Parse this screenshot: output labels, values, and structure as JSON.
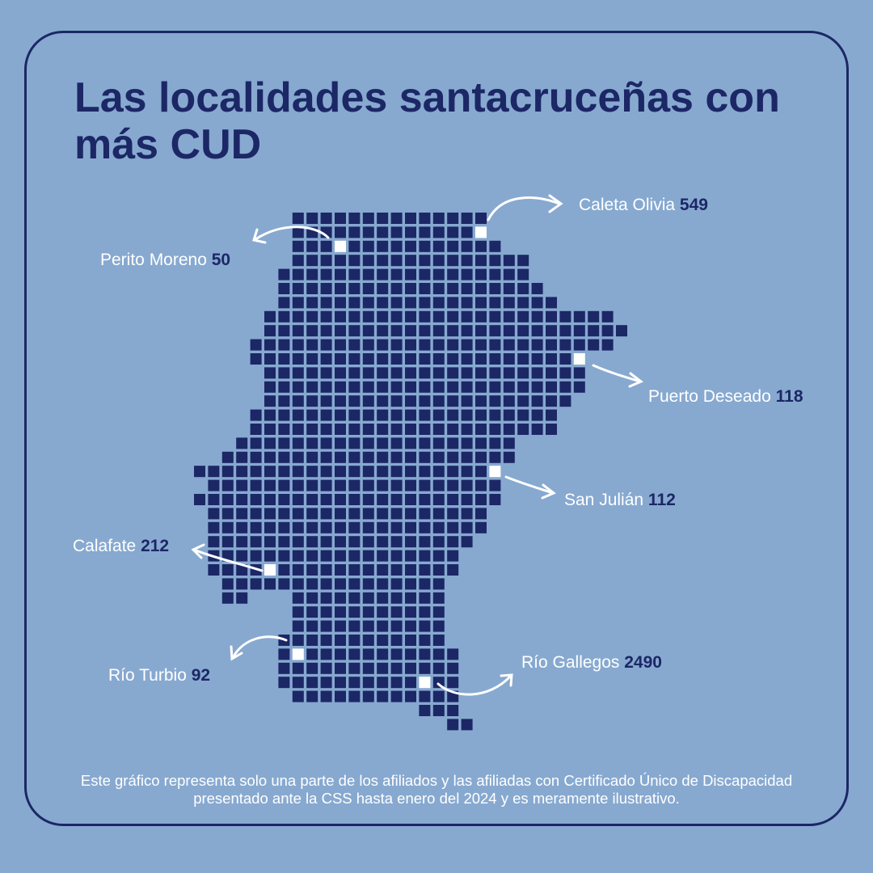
{
  "title": "Las localidades santacruceñas con más CUD",
  "locations": [
    {
      "name": "Caleta Olivia",
      "value": 549
    },
    {
      "name": "Perito Moreno",
      "value": 50
    },
    {
      "name": "Puerto Deseado",
      "value": 118
    },
    {
      "name": "San Julián",
      "value": 112
    },
    {
      "name": "Calafate",
      "value": 212
    },
    {
      "name": "Río Turbio",
      "value": 92
    },
    {
      "name": "Río Gallegos",
      "value": 2490
    }
  ],
  "note": "Este gráfico representa solo una parte de los afiliados y las afiliadas con Certificado Único de Discapacidad presentado ante la CSS hasta enero del 2024 y es meramente ilustrativo."
}
